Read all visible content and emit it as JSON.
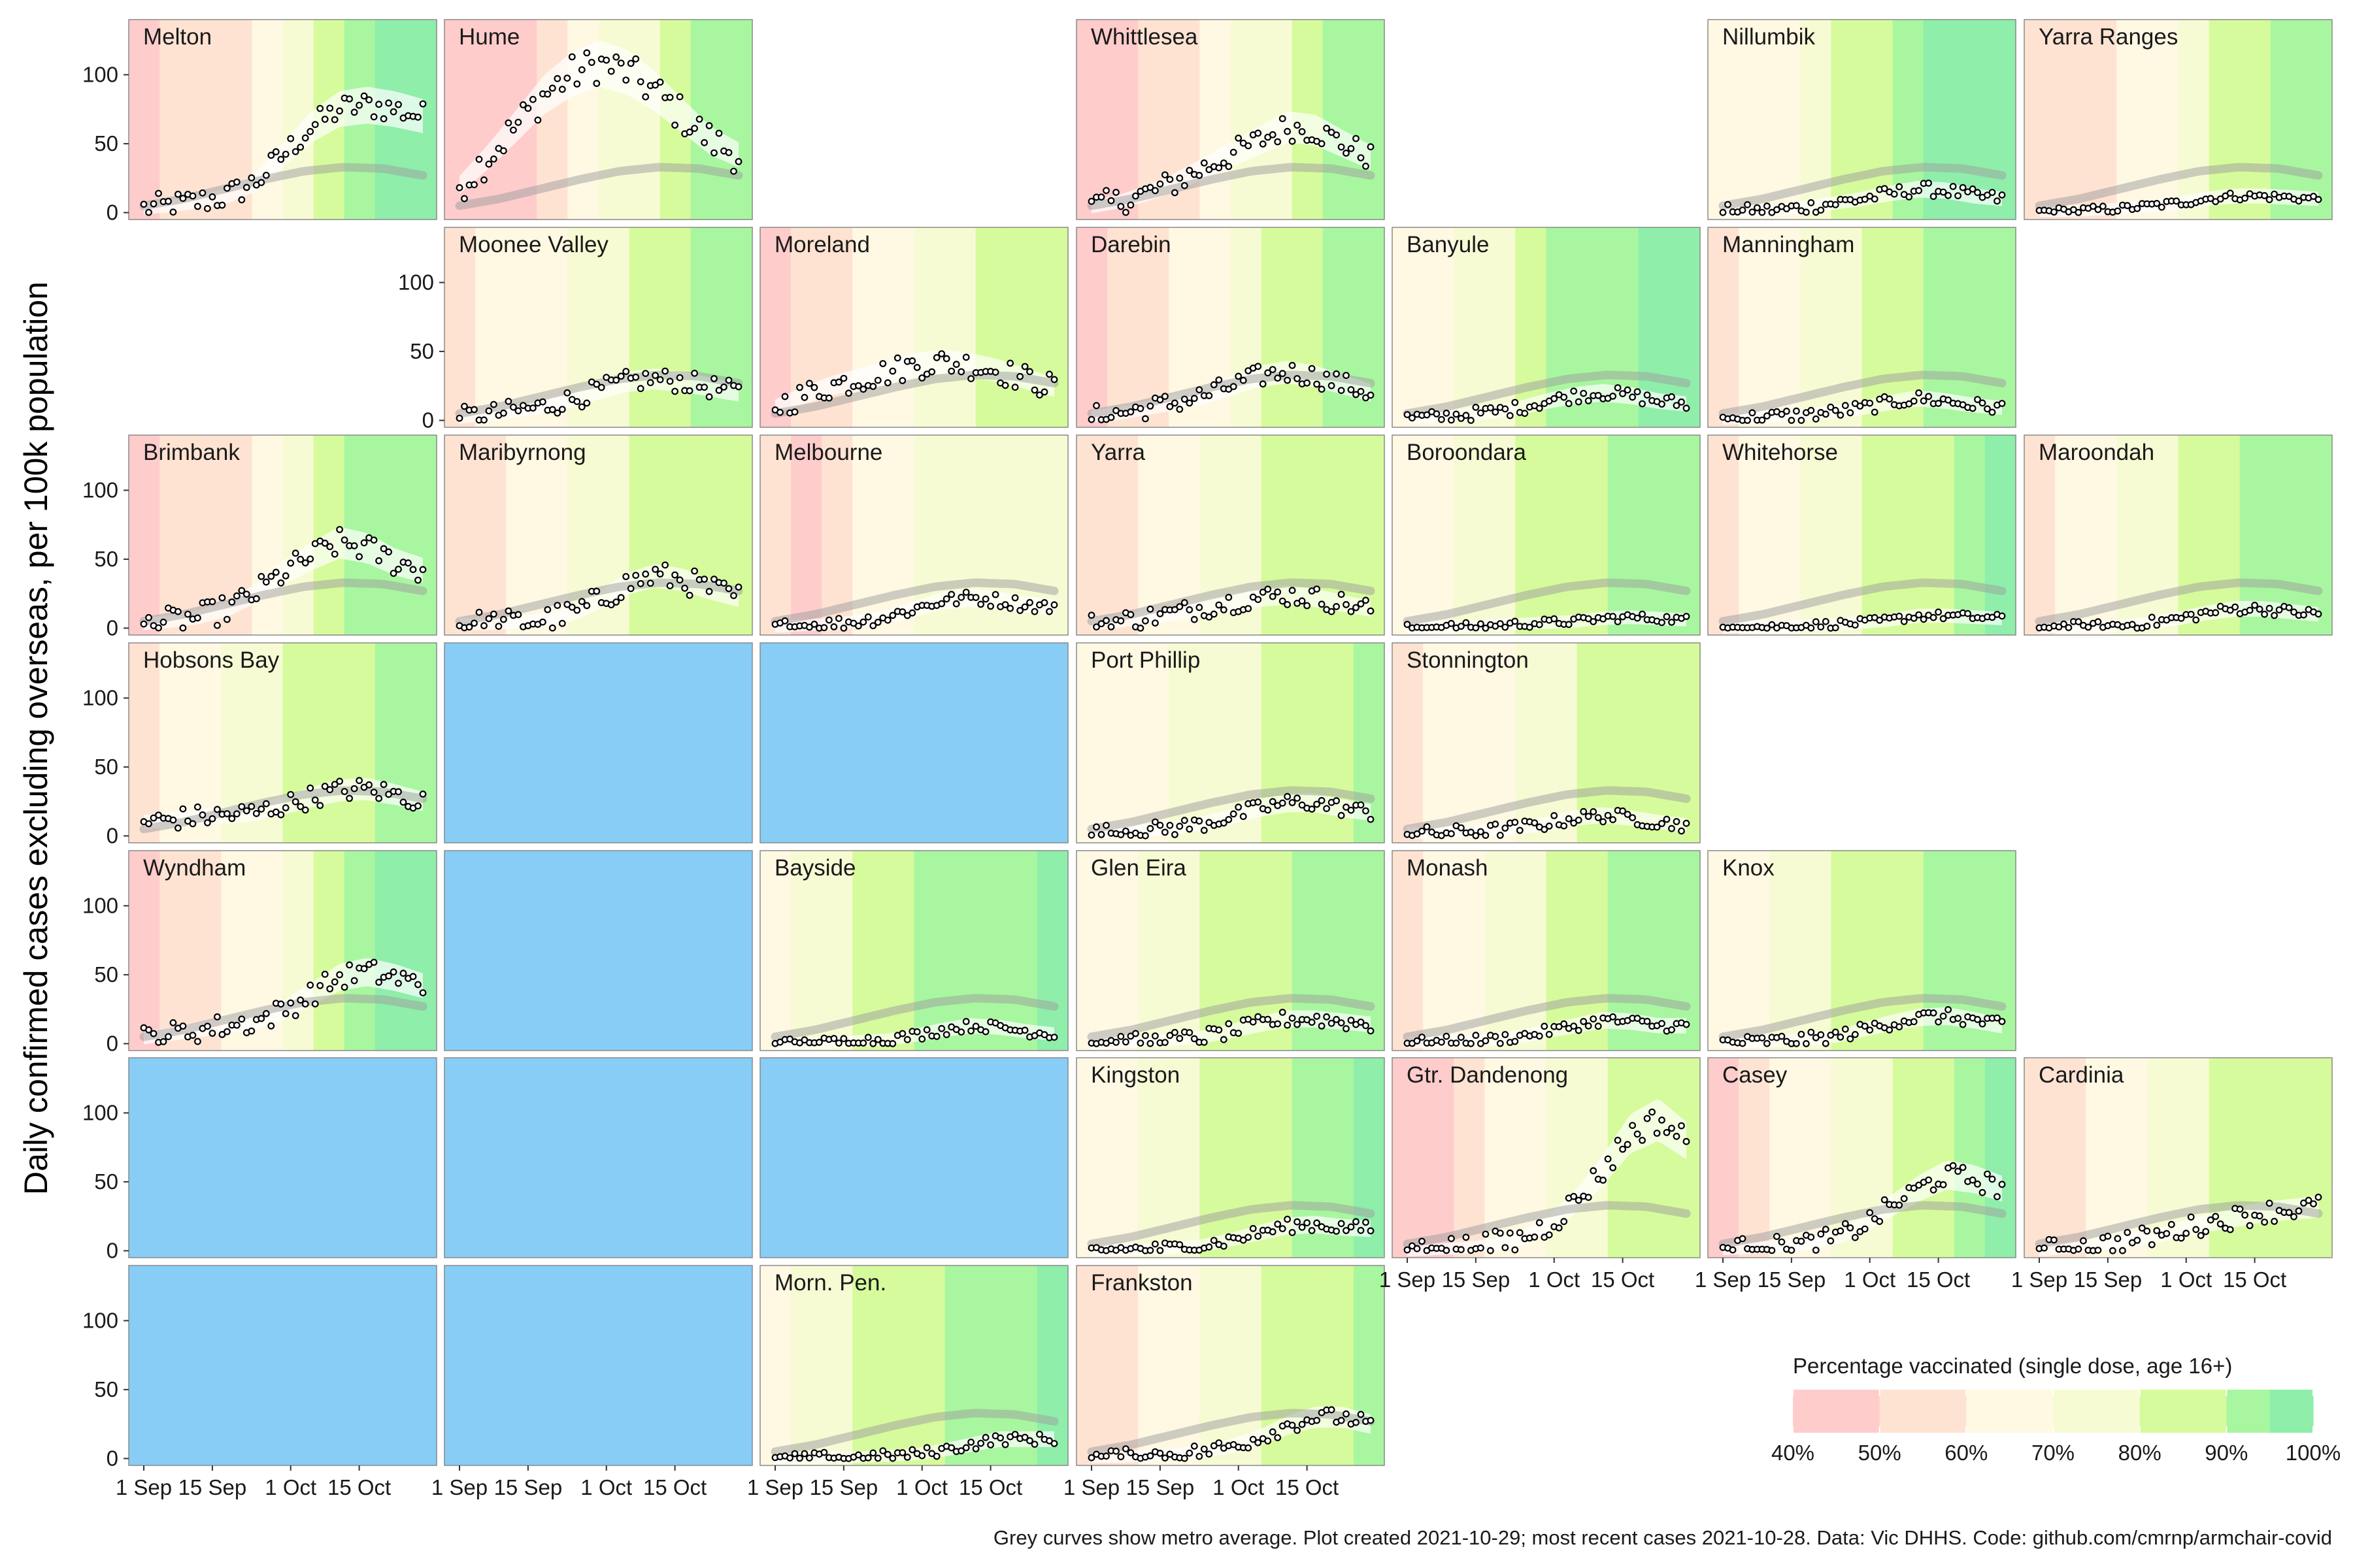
{
  "chart_data": {
    "type": "scatter",
    "ylabel": "Daily confirmed cases excluding overseas, per 100k population",
    "caption": "Grey curves show metro average. Plot created 2021-10-29; most recent cases 2021-10-28. Data: Vic DHHS. Code: github.com/cmrnp/armchair-covid",
    "x_ticks": [
      "1 Sep",
      "15 Sep",
      "1 Oct",
      "15 Oct"
    ],
    "y_ticks": [
      0,
      50,
      100
    ],
    "ylim": [
      -5,
      140
    ],
    "legend": {
      "title": "Percentage vaccinated (single dose, age 16+)",
      "labels": [
        "40%",
        "50%",
        "60%",
        "70%",
        "80%",
        "90%",
        "100%"
      ],
      "colors": [
        "#ffcccc",
        "#ffe3d2",
        "#fff8e3",
        "#f7fbd4",
        "#d6fb9c",
        "#a9f6a0",
        "#8eeeaa"
      ]
    },
    "colors": {
      "empty_panel": "#87cdf6",
      "metro_curve": "#9e9e9e",
      "points": "#000000"
    },
    "metro_average": [
      5,
      10,
      17,
      24,
      30,
      33,
      32,
      27
    ],
    "panels": [
      {
        "name": "Melton",
        "row": 0,
        "col": 0,
        "vax": [
          0,
          1,
          1,
          1,
          2,
          3,
          4,
          5,
          6,
          6
        ],
        "trend": [
          3,
          5,
          8,
          12,
          22,
          42,
          62,
          75,
          78,
          75,
          70
        ],
        "noise": 10
      },
      {
        "name": "Hume",
        "row": 0,
        "col": 1,
        "vax": [
          0,
          0,
          0,
          1,
          2,
          3,
          3,
          4,
          5,
          5
        ],
        "trend": [
          20,
          40,
          62,
          85,
          100,
          108,
          102,
          88,
          70,
          52,
          42
        ],
        "noise": 14
      },
      {
        "name": "Whittlesea",
        "row": 0,
        "col": 3,
        "vax": [
          0,
          0,
          1,
          1,
          2,
          3,
          3,
          4,
          5,
          5
        ],
        "trend": [
          4,
          8,
          14,
          22,
          32,
          42,
          52,
          62,
          60,
          50,
          40
        ],
        "noise": 10
      },
      {
        "name": "Nillumbik",
        "row": 0,
        "col": 5,
        "vax": [
          2,
          2,
          2,
          3,
          4,
          4,
          5,
          6,
          6,
          6
        ],
        "trend": [
          1,
          1,
          2,
          4,
          7,
          10,
          14,
          17,
          16,
          12,
          10
        ],
        "noise": 5
      },
      {
        "name": "Yarra Ranges",
        "row": 0,
        "col": 6,
        "vax": [
          1,
          1,
          1,
          2,
          2,
          3,
          4,
          4,
          5,
          5
        ],
        "trend": [
          1,
          1,
          2,
          3,
          5,
          7,
          10,
          12,
          12,
          11,
          10
        ],
        "noise": 3
      },
      {
        "name": "Moonee Valley",
        "row": 1,
        "col": 1,
        "vax": [
          1,
          2,
          2,
          2,
          3,
          3,
          4,
          4,
          5,
          5
        ],
        "trend": [
          2,
          4,
          7,
          10,
          15,
          22,
          28,
          30,
          28,
          24,
          20
        ],
        "noise": 8
      },
      {
        "name": "Moreland",
        "row": 1,
        "col": 2,
        "vax": [
          0,
          1,
          1,
          2,
          2,
          3,
          3,
          4,
          4,
          4
        ],
        "trend": [
          10,
          18,
          25,
          30,
          35,
          40,
          42,
          40,
          36,
          30,
          24
        ],
        "noise": 10
      },
      {
        "name": "Darebin",
        "row": 1,
        "col": 3,
        "vax": [
          0,
          1,
          1,
          2,
          2,
          3,
          4,
          4,
          5,
          5
        ],
        "trend": [
          3,
          5,
          9,
          13,
          18,
          25,
          32,
          35,
          32,
          26,
          20
        ],
        "noise": 8
      },
      {
        "name": "Banyule",
        "row": 1,
        "col": 4,
        "vax": [
          2,
          2,
          3,
          3,
          4,
          5,
          5,
          5,
          6,
          6
        ],
        "trend": [
          2,
          2,
          4,
          6,
          9,
          14,
          18,
          20,
          18,
          14,
          12
        ],
        "noise": 5
      },
      {
        "name": "Manningham",
        "row": 1,
        "col": 5,
        "vax": [
          1,
          2,
          2,
          3,
          3,
          4,
          4,
          5,
          5,
          5
        ],
        "trend": [
          1,
          2,
          3,
          4,
          6,
          9,
          13,
          16,
          14,
          11,
          9
        ],
        "noise": 5
      },
      {
        "name": "Brimbank",
        "row": 2,
        "col": 0,
        "vax": [
          0,
          1,
          1,
          1,
          2,
          3,
          4,
          5,
          5,
          5
        ],
        "trend": [
          3,
          5,
          8,
          14,
          25,
          40,
          52,
          62,
          58,
          48,
          42
        ],
        "noise": 10
      },
      {
        "name": "Maribyrnong",
        "row": 2,
        "col": 1,
        "vax": [
          1,
          1,
          2,
          2,
          3,
          3,
          4,
          4,
          4,
          4
        ],
        "trend": [
          3,
          3,
          4,
          6,
          10,
          20,
          32,
          38,
          35,
          28,
          22
        ],
        "noise": 10
      },
      {
        "name": "Melbourne",
        "row": 2,
        "col": 2,
        "vax": [
          1,
          0,
          1,
          2,
          2,
          3,
          3,
          3,
          3,
          3
        ],
        "trend": [
          1,
          2,
          3,
          5,
          8,
          14,
          20,
          22,
          20,
          17,
          15
        ],
        "noise": 5
      },
      {
        "name": "Yarra",
        "row": 2,
        "col": 3,
        "vax": [
          1,
          1,
          2,
          2,
          3,
          3,
          4,
          4,
          4,
          4
        ],
        "trend": [
          3,
          5,
          8,
          11,
          15,
          19,
          22,
          24,
          22,
          18,
          14
        ],
        "noise": 8
      },
      {
        "name": "Boroondara",
        "row": 2,
        "col": 4,
        "vax": [
          2,
          2,
          3,
          3,
          4,
          4,
          4,
          5,
          5,
          5
        ],
        "trend": [
          0,
          1,
          1,
          2,
          3,
          4,
          5,
          7,
          8,
          7,
          6
        ],
        "noise": 3
      },
      {
        "name": "Whitehorse",
        "row": 2,
        "col": 5,
        "vax": [
          1,
          2,
          2,
          3,
          3,
          4,
          4,
          4,
          5,
          6
        ],
        "trend": [
          0,
          1,
          1,
          2,
          3,
          4,
          6,
          9,
          9,
          8,
          7
        ],
        "noise": 3
      },
      {
        "name": "Maroondah",
        "row": 2,
        "col": 6,
        "vax": [
          1,
          2,
          2,
          3,
          3,
          4,
          4,
          5,
          5,
          5
        ],
        "trend": [
          0,
          1,
          1,
          2,
          4,
          7,
          11,
          14,
          14,
          12,
          10
        ],
        "noise": 4
      },
      {
        "name": "Hobsons Bay",
        "row": 3,
        "col": 0,
        "vax": [
          1,
          2,
          2,
          3,
          3,
          4,
          4,
          4,
          5,
          5
        ],
        "trend": [
          10,
          12,
          14,
          15,
          17,
          22,
          28,
          33,
          34,
          30,
          25
        ],
        "noise": 8
      },
      {
        "name": "Port Phillip",
        "row": 3,
        "col": 3,
        "vax": [
          2,
          2,
          2,
          3,
          3,
          3,
          4,
          4,
          4,
          5
        ],
        "trend": [
          2,
          3,
          4,
          6,
          9,
          14,
          20,
          24,
          24,
          20,
          17
        ],
        "noise": 6
      },
      {
        "name": "Stonnington",
        "row": 3,
        "col": 4,
        "vax": [
          1,
          2,
          2,
          2,
          3,
          3,
          4,
          4,
          4,
          4
        ],
        "trend": [
          2,
          2,
          3,
          4,
          6,
          9,
          13,
          15,
          13,
          10,
          8
        ],
        "noise": 5
      },
      {
        "name": "Wyndham",
        "row": 4,
        "col": 0,
        "vax": [
          0,
          1,
          1,
          2,
          2,
          3,
          4,
          5,
          6,
          6
        ],
        "trend": [
          4,
          7,
          10,
          13,
          16,
          24,
          36,
          48,
          52,
          48,
          42
        ],
        "noise": 9
      },
      {
        "name": "Bayside",
        "row": 4,
        "col": 2,
        "vax": [
          2,
          3,
          3,
          4,
          4,
          5,
          5,
          5,
          5,
          6
        ],
        "trend": [
          0,
          0,
          1,
          2,
          3,
          6,
          10,
          13,
          12,
          9,
          7
        ],
        "noise": 4
      },
      {
        "name": "Glen Eira",
        "row": 4,
        "col": 3,
        "vax": [
          2,
          2,
          3,
          3,
          4,
          4,
          4,
          5,
          5,
          5
        ],
        "trend": [
          0,
          1,
          2,
          3,
          5,
          9,
          14,
          18,
          18,
          16,
          14
        ],
        "noise": 6
      },
      {
        "name": "Monash",
        "row": 4,
        "col": 4,
        "vax": [
          1,
          2,
          2,
          3,
          3,
          4,
          4,
          5,
          5,
          5
        ],
        "trend": [
          1,
          1,
          2,
          3,
          5,
          9,
          13,
          17,
          16,
          13,
          13
        ],
        "noise": 4
      },
      {
        "name": "Knox",
        "row": 4,
        "col": 5,
        "vax": [
          2,
          2,
          3,
          3,
          4,
          4,
          4,
          5,
          5,
          5
        ],
        "trend": [
          1,
          1,
          2,
          3,
          5,
          10,
          15,
          19,
          20,
          17,
          13
        ],
        "noise": 5
      },
      {
        "name": "Kingston",
        "row": 5,
        "col": 3,
        "vax": [
          2,
          2,
          3,
          3,
          4,
          4,
          4,
          5,
          5,
          6
        ],
        "trend": [
          0,
          1,
          1,
          2,
          4,
          8,
          13,
          18,
          19,
          17,
          16
        ],
        "noise": 5
      },
      {
        "name": "Gtr. Dandenong",
        "row": 5,
        "col": 4,
        "vax": [
          0,
          0,
          1,
          2,
          2,
          3,
          3,
          4,
          4,
          4
        ],
        "trend": [
          0,
          1,
          2,
          4,
          8,
          18,
          35,
          58,
          85,
          95,
          80
        ],
        "noise": 10
      },
      {
        "name": "Casey",
        "row": 5,
        "col": 5,
        "vax": [
          0,
          1,
          2,
          2,
          3,
          3,
          4,
          4,
          5,
          6
        ],
        "trend": [
          1,
          2,
          3,
          5,
          9,
          18,
          32,
          45,
          55,
          52,
          45
        ],
        "noise": 8
      },
      {
        "name": "Cardinia",
        "row": 5,
        "col": 6,
        "vax": [
          1,
          1,
          2,
          2,
          3,
          3,
          4,
          4,
          4,
          4
        ],
        "trend": [
          0,
          2,
          4,
          7,
          10,
          15,
          20,
          24,
          28,
          30,
          32
        ],
        "noise": 8
      },
      {
        "name": "Morn. Pen.",
        "row": 6,
        "col": 2,
        "vax": [
          2,
          3,
          3,
          4,
          4,
          4,
          5,
          5,
          5,
          6
        ],
        "trend": [
          0,
          0,
          1,
          1,
          2,
          3,
          6,
          10,
          14,
          14,
          14
        ],
        "noise": 4
      },
      {
        "name": "Frankston",
        "row": 6,
        "col": 3,
        "vax": [
          1,
          1,
          2,
          2,
          3,
          3,
          4,
          4,
          4,
          5
        ],
        "trend": [
          1,
          1,
          2,
          3,
          5,
          9,
          15,
          24,
          30,
          30,
          25
        ],
        "noise": 6
      }
    ],
    "empty_cells": [
      {
        "row": 3,
        "col": 1
      },
      {
        "row": 3,
        "col": 2
      },
      {
        "row": 4,
        "col": 1
      },
      {
        "row": 5,
        "col": 0
      },
      {
        "row": 5,
        "col": 1
      },
      {
        "row": 5,
        "col": 2
      },
      {
        "row": 6,
        "col": 0
      },
      {
        "row": 6,
        "col": 1
      }
    ]
  }
}
